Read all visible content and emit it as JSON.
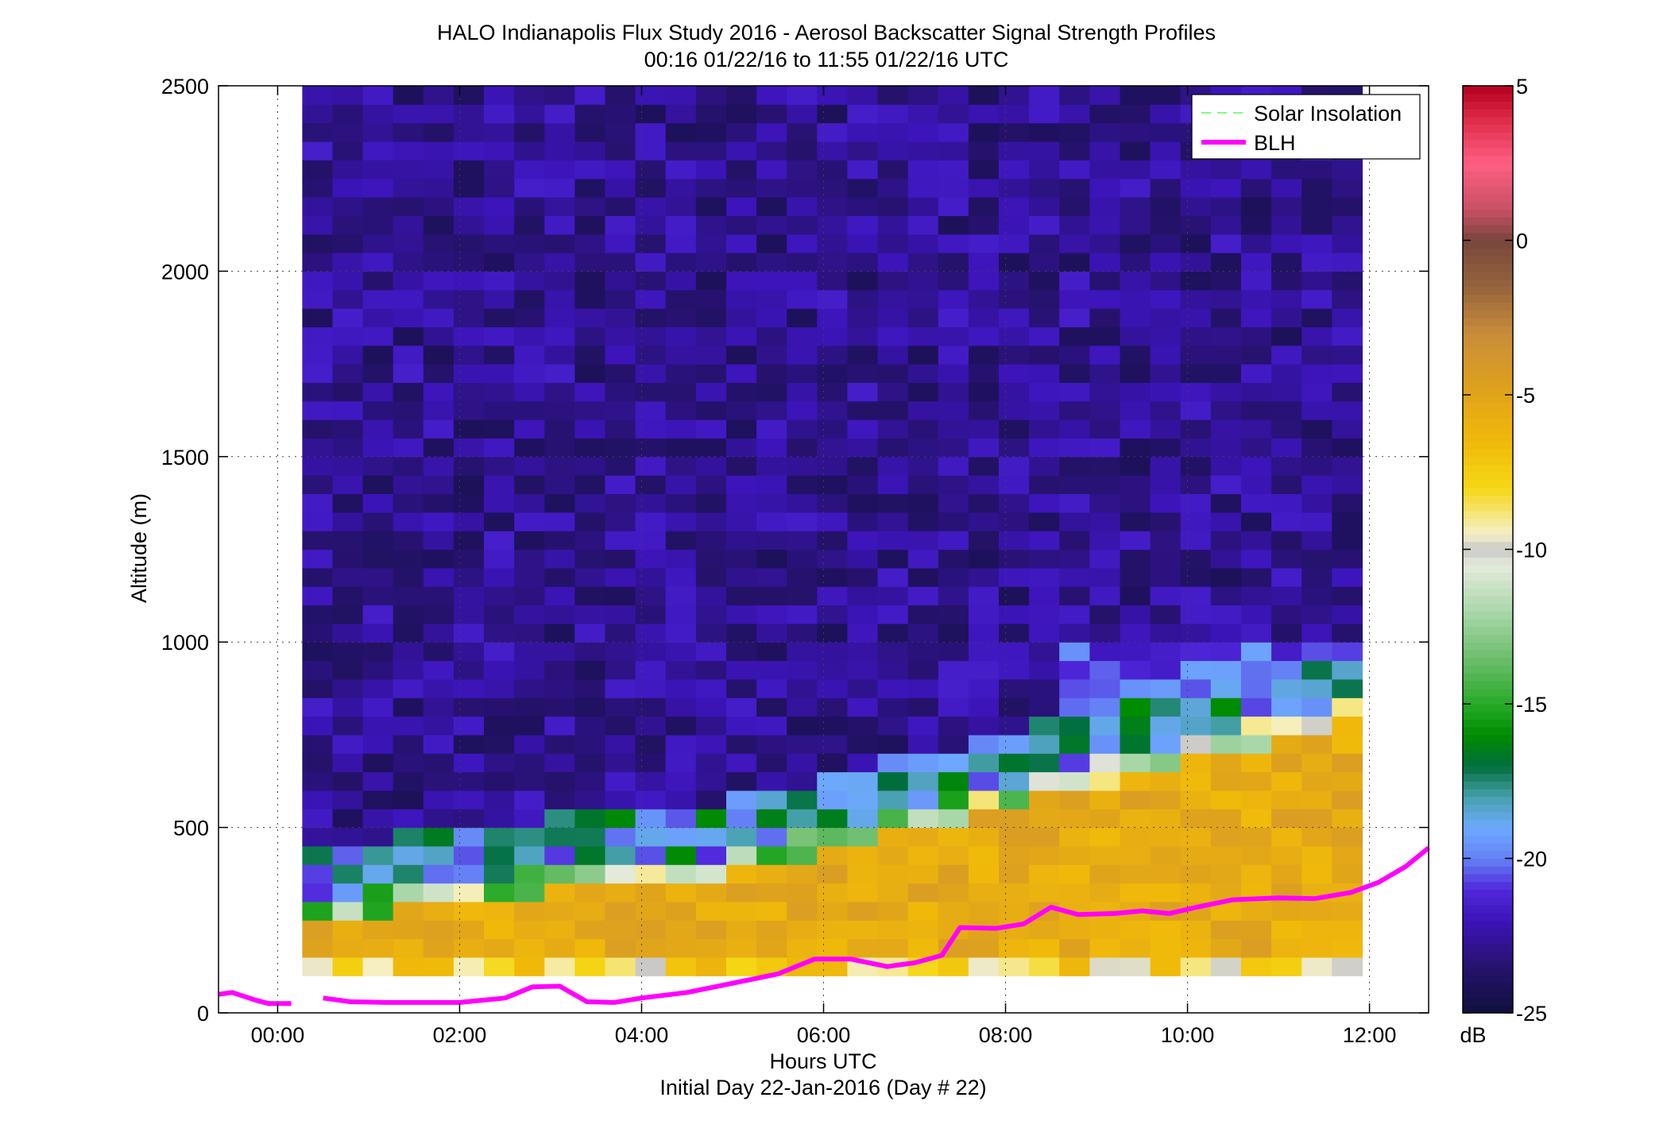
{
  "chart_data": {
    "type": "heatmap",
    "title": "HALO Indianapolis Flux Study 2016 - Aerosol Backscatter Signal Strength Profiles",
    "subtitle": "00:16 01/22/16 to 11:55 01/22/16  UTC",
    "xlabel": "Hours UTC",
    "xlabel2": "Initial Day 22-Jan-2016 (Day # 22)",
    "ylabel": "Altitude (m)",
    "xlim": [
      -0.65,
      12.65
    ],
    "ylim": [
      0,
      2500
    ],
    "x_ticks": [
      {
        "v": 0,
        "label": "00:00"
      },
      {
        "v": 2,
        "label": "02:00"
      },
      {
        "v": 4,
        "label": "04:00"
      },
      {
        "v": 6,
        "label": "06:00"
      },
      {
        "v": 8,
        "label": "08:00"
      },
      {
        "v": 10,
        "label": "10:00"
      },
      {
        "v": 12,
        "label": "12:00"
      }
    ],
    "y_ticks": [
      0,
      500,
      1000,
      1500,
      2000,
      2500
    ],
    "grid": true,
    "legend_position": "top-right",
    "legend": [
      {
        "name": "Solar Insolation",
        "color": "#80ff80",
        "style": "dashed"
      },
      {
        "name": "BLH",
        "color": "#ff00ff",
        "style": "solid"
      }
    ],
    "heatmap": {
      "time_start": 0.27,
      "time_end": 11.92,
      "ncols": 35,
      "alt_start": 100,
      "alt_end": 2500,
      "nrows": 48,
      "band_boundaries": [
        150,
        300,
        320,
        370,
        400,
        450,
        500,
        600,
        700,
        900
      ],
      "band_values_db": [
        -9,
        -6,
        -5,
        -11,
        -14,
        -16,
        -19,
        -22,
        -22.5,
        -22,
        -23
      ],
      "blh_boundary_m": [
        260,
        260,
        270,
        280,
        290,
        300,
        310,
        320,
        330,
        335,
        340,
        345,
        350,
        360,
        380,
        400,
        420,
        440,
        460,
        480,
        500,
        520,
        540,
        560,
        580,
        600,
        620,
        640,
        660,
        680,
        700,
        720,
        740,
        760,
        780
      ]
    },
    "colorbar": {
      "min": -25,
      "max": 5,
      "ticks": [
        -25,
        -20,
        -15,
        -10,
        -5,
        0,
        5
      ],
      "unit_label": "dB"
    },
    "series": [
      {
        "name": "BLH",
        "color": "#ff00ff",
        "segments": [
          [
            [
              -0.65,
              50
            ],
            [
              -0.5,
              55
            ],
            [
              -0.25,
              35
            ],
            [
              -0.1,
              25
            ],
            [
              0.15,
              25
            ]
          ],
          [
            [
              0.5,
              40
            ],
            [
              0.8,
              30
            ],
            [
              1.2,
              28
            ],
            [
              1.6,
              28
            ],
            [
              2.0,
              28
            ],
            [
              2.5,
              40
            ],
            [
              2.8,
              70
            ],
            [
              3.1,
              72
            ],
            [
              3.4,
              30
            ],
            [
              3.7,
              28
            ],
            [
              4.0,
              40
            ],
            [
              4.5,
              55
            ],
            [
              5.0,
              80
            ],
            [
              5.5,
              105
            ],
            [
              5.9,
              145
            ],
            [
              6.3,
              145
            ],
            [
              6.7,
              125
            ],
            [
              7.0,
              135
            ],
            [
              7.3,
              155
            ],
            [
              7.5,
              230
            ],
            [
              7.9,
              228
            ],
            [
              8.2,
              240
            ],
            [
              8.5,
              285
            ],
            [
              8.8,
              265
            ],
            [
              9.2,
              268
            ],
            [
              9.5,
              275
            ],
            [
              9.8,
              268
            ],
            [
              10.1,
              285
            ],
            [
              10.5,
              305
            ],
            [
              11.0,
              310
            ],
            [
              11.4,
              308
            ],
            [
              11.8,
              325
            ],
            [
              12.1,
              352
            ],
            [
              12.4,
              395
            ],
            [
              12.65,
              445
            ]
          ]
        ]
      },
      {
        "name": "Solar Insolation",
        "color": "#80ff80",
        "values": []
      }
    ]
  }
}
